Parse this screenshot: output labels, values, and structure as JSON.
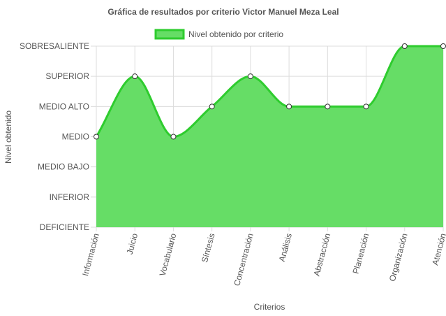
{
  "chart_data": {
    "type": "area",
    "title": "Gráfica de resultados por criterio Victor Manuel Meza Leal",
    "xlabel": "Criterios",
    "ylabel": "Nivel obtenido",
    "y_levels": [
      "DEFICIENTE",
      "INFERIOR",
      "MEDIO BAJO",
      "MEDIO",
      "MEDIO ALTO",
      "SUPERIOR",
      "SOBRESALIENTE"
    ],
    "categories": [
      "Información",
      "Juicio",
      "Vocabulario",
      "Síntesis",
      "Concentración",
      "Análisis",
      "Abstracción",
      "Planeación",
      "Organización",
      "Atención"
    ],
    "series": [
      {
        "name": "Nivel obtenido por criterio",
        "values": [
          "MEDIO",
          "SUPERIOR",
          "MEDIO",
          "MEDIO ALTO",
          "SUPERIOR",
          "MEDIO ALTO",
          "MEDIO ALTO",
          "MEDIO ALTO",
          "SOBRESALIENTE",
          "SOBRESALIENTE"
        ],
        "fill_color": "#66dd66",
        "line_color": "#2ecc2e"
      }
    ],
    "legend_position": "top",
    "grid": true
  }
}
